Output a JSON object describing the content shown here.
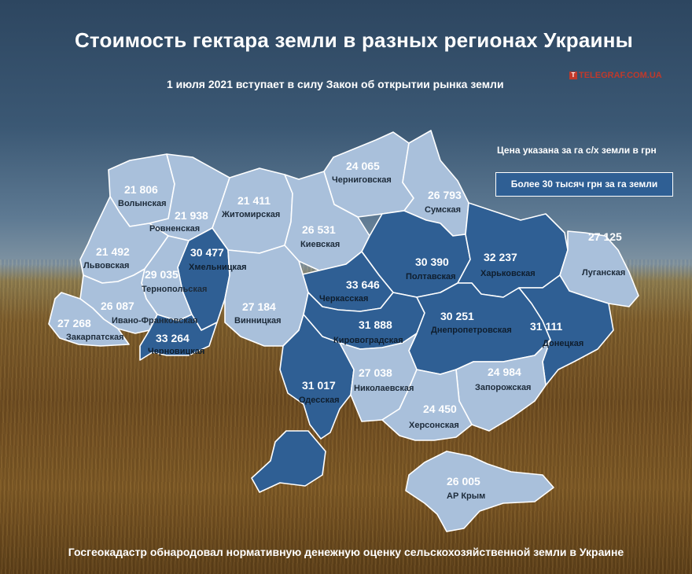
{
  "title": "Стоимость гектара земли в разных регионах Украины",
  "subtitle": "1 июля 2021 вступает в силу Закон об открытии рынка земли",
  "brand": "TELEGRAF.COM.UA",
  "price_note": "Цена указана за га с/х земли в грн",
  "legend_label": "Более 30 тысяч грн за га земли",
  "footer": "Госгеокадастр обнародовал нормативную денежную оценку сельскохозяйственной земли в Украине",
  "colors": {
    "light": "#a9c0db",
    "dark": "#2f5f94",
    "background": "#3b5874"
  },
  "regions": [
    {
      "name": "Волынская",
      "value": "21 806",
      "highlight": false
    },
    {
      "name": "Ровненская",
      "value": "21 938",
      "highlight": false
    },
    {
      "name": "Житомирская",
      "value": "21 411",
      "highlight": false
    },
    {
      "name": "Черниговская",
      "value": "24 065",
      "highlight": false
    },
    {
      "name": "Сумская",
      "value": "26 793",
      "highlight": false
    },
    {
      "name": "Киевская",
      "value": "26 531",
      "highlight": false
    },
    {
      "name": "Львовская",
      "value": "21 492",
      "highlight": false
    },
    {
      "name": "Хмельницкая",
      "value": "30 477",
      "highlight": true
    },
    {
      "name": "Тернопольская",
      "value": "29 035",
      "highlight": false
    },
    {
      "name": "Полтавская",
      "value": "30 390",
      "highlight": true
    },
    {
      "name": "Харьковская",
      "value": "32 237",
      "highlight": true
    },
    {
      "name": "Луганская",
      "value": "27 125",
      "highlight": false
    },
    {
      "name": "Черкасская",
      "value": "33 646",
      "highlight": true
    },
    {
      "name": "Винницкая",
      "value": "27 184",
      "highlight": false
    },
    {
      "name": "Ивано-Франковская",
      "value": "26 087",
      "highlight": false
    },
    {
      "name": "Закарпатская",
      "value": "27 268",
      "highlight": false
    },
    {
      "name": "Черновицкая",
      "value": "33 264",
      "highlight": true
    },
    {
      "name": "Кировоградская",
      "value": "31 888",
      "highlight": true
    },
    {
      "name": "Днепропетровская",
      "value": "30 251",
      "highlight": true
    },
    {
      "name": "Донецкая",
      "value": "31 111",
      "highlight": true
    },
    {
      "name": "Одесская",
      "value": "31 017",
      "highlight": true
    },
    {
      "name": "Николаевская",
      "value": "27 038",
      "highlight": false
    },
    {
      "name": "Запорожская",
      "value": "24 984",
      "highlight": false
    },
    {
      "name": "Херсонская",
      "value": "24 450",
      "highlight": false
    },
    {
      "name": "АР Крым",
      "value": "26 005",
      "highlight": false
    }
  ]
}
